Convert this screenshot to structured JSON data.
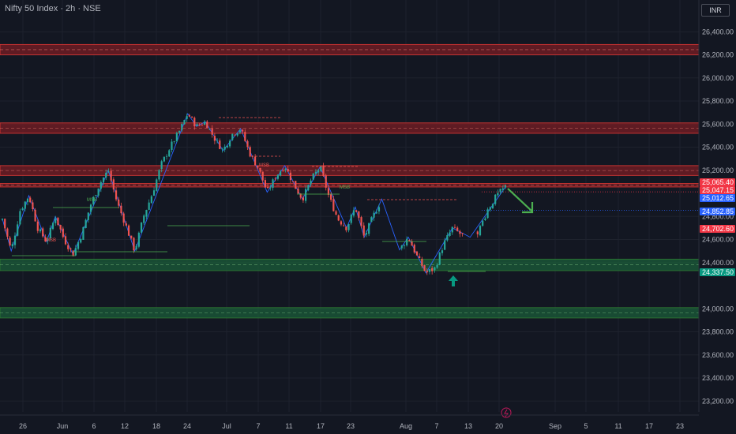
{
  "header": {
    "symbol_title": "Nifty 50 Index · 2h · NSE",
    "currency": "INR"
  },
  "colors": {
    "background": "#131722",
    "up": "#26a69a",
    "down": "#ef5350",
    "resistance_zone": "#7a1d24",
    "support_zone": "#1b5e3a",
    "zigzag": "#2962ff",
    "arrow": "#4caf50",
    "tag_red": "#f23645",
    "tag_blue": "#2962ff",
    "tag_green": "#089981"
  },
  "chart_data": {
    "type": "candlestick",
    "y_axis": {
      "ticks": [
        "26,400.00",
        "26,200.00",
        "26,000.00",
        "25,800.00",
        "25,600.00",
        "25,400.00",
        "25,200.00",
        "24,800.00",
        "24,600.00",
        "24,400.00",
        "24,000.00",
        "23,800.00",
        "23,600.00",
        "23,400.00",
        "23,200.00"
      ],
      "values": [
        26400,
        26200,
        26000,
        25800,
        25600,
        25400,
        25200,
        24800,
        24600,
        24400,
        24000,
        23800,
        23600,
        23400,
        23200
      ],
      "range": [
        23130,
        26560
      ]
    },
    "x_axis": {
      "labels": [
        "26",
        "Jun",
        "6",
        "12",
        "18",
        "24",
        "Jul",
        "7",
        "11",
        "17",
        "23",
        "Aug",
        "7",
        "13",
        "20",
        "Sep",
        "5",
        "11",
        "17",
        "23"
      ]
    },
    "price_tags": [
      {
        "label": "25,065.40",
        "value": 25065.4,
        "color": "#f23645"
      },
      {
        "label": "25,047.15",
        "value": 25047.15,
        "color": "#f23645"
      },
      {
        "label": "25,012.65",
        "value": 25012.65,
        "color": "#2962ff"
      },
      {
        "label": "24,852.85",
        "value": 24852.85,
        "color": "#2962ff"
      },
      {
        "label": "24,702.60",
        "value": 24702.6,
        "color": "#f23645"
      },
      {
        "label": "24,337.50",
        "value": 24337.5,
        "color": "#089981"
      }
    ],
    "zones": [
      {
        "kind": "resistance",
        "from": 26200,
        "to": 26290
      },
      {
        "kind": "resistance",
        "from": 25520,
        "to": 25610
      },
      {
        "kind": "resistance",
        "from": 25155,
        "to": 25240
      },
      {
        "kind": "resistance",
        "from": 25055,
        "to": 25085
      },
      {
        "kind": "support",
        "from": 24330,
        "to": 24430
      },
      {
        "kind": "support",
        "from": 23920,
        "to": 24010
      }
    ],
    "price_path": [
      24780,
      24500,
      24850,
      24980,
      24700,
      24580,
      24800,
      24600,
      24470,
      24650,
      24900,
      25080,
      25200,
      24920,
      24720,
      24500,
      24800,
      25000,
      25250,
      25400,
      25530,
      25690,
      25580,
      25620,
      25480,
      25370,
      25510,
      25560,
      25350,
      25220,
      25010,
      25150,
      25240,
      25080,
      24950,
      25120,
      25230,
      24970,
      24780,
      24700,
      24880,
      24620,
      24800,
      24950,
      24720,
      24510,
      24620,
      24450,
      24310,
      24350,
      24560,
      24700,
      24640,
      24620,
      24680,
      24860,
      24980,
      25055
    ],
    "annotations": [
      "MSB",
      "MSB",
      "MSB",
      "MSB"
    ],
    "arrows": [
      "down",
      "up"
    ]
  }
}
